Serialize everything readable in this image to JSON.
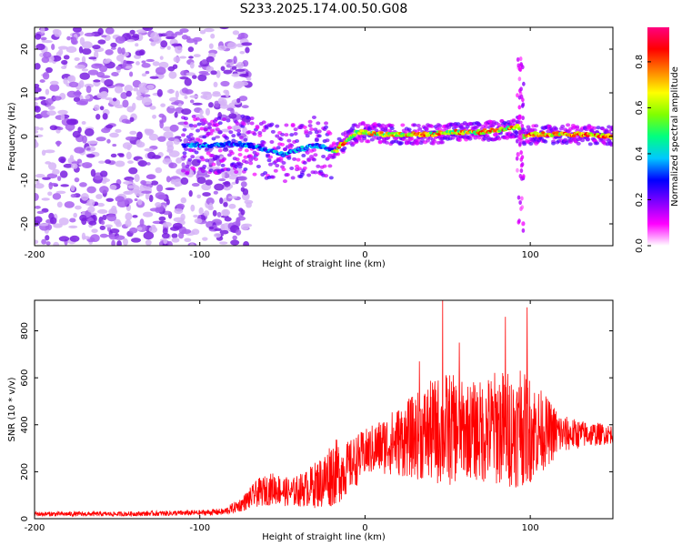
{
  "figure": {
    "title": "S233.2025.174.00.50.G08"
  },
  "chart_data": [
    {
      "type": "heatmap",
      "xlabel": "Height of straight line (km)",
      "ylabel": "Frequency (Hz)",
      "xlim": [
        -200,
        150
      ],
      "ylim": [
        -25,
        25
      ],
      "x_ticks": [
        -200,
        -100,
        0,
        100
      ],
      "y_ticks": [
        -20,
        -10,
        0,
        10,
        20
      ],
      "colorbar": {
        "label": "Normalized spectral amplitude",
        "range": [
          0,
          0.95
        ],
        "ticks": [
          0,
          0.2,
          0.4,
          0.6,
          0.8
        ],
        "colormap": [
          "#ffffff",
          "#ff00ff",
          "#8000ff",
          "#0000ff",
          "#00c8ff",
          "#00ff80",
          "#80ff00",
          "#ffff00",
          "#ff8000",
          "#ff0000",
          "#ff0080"
        ]
      },
      "ridge": {
        "description_x": [
          -110,
          -90,
          -80,
          -70,
          -60,
          -50,
          -40,
          -30,
          -20,
          -18,
          -15,
          -10,
          -5,
          0,
          10,
          20,
          30,
          40,
          50,
          60,
          70,
          80,
          90,
          93,
          95,
          100,
          110,
          120,
          130,
          150
        ],
        "frequency_hz": [
          -2,
          -2,
          -1.5,
          -2,
          -3,
          -4,
          -3,
          -2,
          -3,
          -3.5,
          -2,
          -0.5,
          1,
          1,
          0.5,
          0.5,
          0.5,
          0.5,
          1,
          1,
          1,
          1.5,
          2,
          2.5,
          0,
          0.5,
          0.5,
          0.5,
          0.5,
          0
        ]
      },
      "noise_region_x": [
        -200,
        -80
      ]
    },
    {
      "type": "line",
      "xlabel": "Height of straight line (km)",
      "ylabel": "SNR (10 * v/v)",
      "xlim": [
        -200,
        150
      ],
      "ylim": [
        0,
        930
      ],
      "x_ticks": [
        -200,
        -100,
        0,
        100
      ],
      "y_ticks": [
        0,
        200,
        400,
        600,
        800
      ],
      "color": "#ff0000",
      "series_envelope": {
        "x": [
          -200,
          -150,
          -100,
          -85,
          -75,
          -65,
          -55,
          -45,
          -35,
          -25,
          -20,
          -15,
          -10,
          -5,
          0,
          10,
          20,
          30,
          40,
          50,
          60,
          70,
          80,
          90,
          100,
          110,
          120,
          130,
          140,
          150
        ],
        "mean": [
          20,
          20,
          25,
          30,
          60,
          110,
          130,
          110,
          130,
          160,
          200,
          200,
          220,
          250,
          280,
          310,
          330,
          350,
          370,
          380,
          380,
          370,
          390,
          380,
          380,
          370,
          360,
          360,
          360,
          360
        ],
        "amp": [
          10,
          10,
          12,
          15,
          30,
          60,
          70,
          60,
          80,
          120,
          150,
          130,
          110,
          110,
          100,
          120,
          150,
          180,
          220,
          250,
          200,
          220,
          250,
          250,
          230,
          150,
          80,
          60,
          50,
          40
        ]
      },
      "peaks": [
        {
          "x": 47,
          "y": 930
        },
        {
          "x": 98,
          "y": 900
        },
        {
          "x": 94,
          "y": 630
        },
        {
          "x": 33,
          "y": 670
        },
        {
          "x": 57,
          "y": 750
        },
        {
          "x": 85,
          "y": 860
        }
      ]
    }
  ]
}
